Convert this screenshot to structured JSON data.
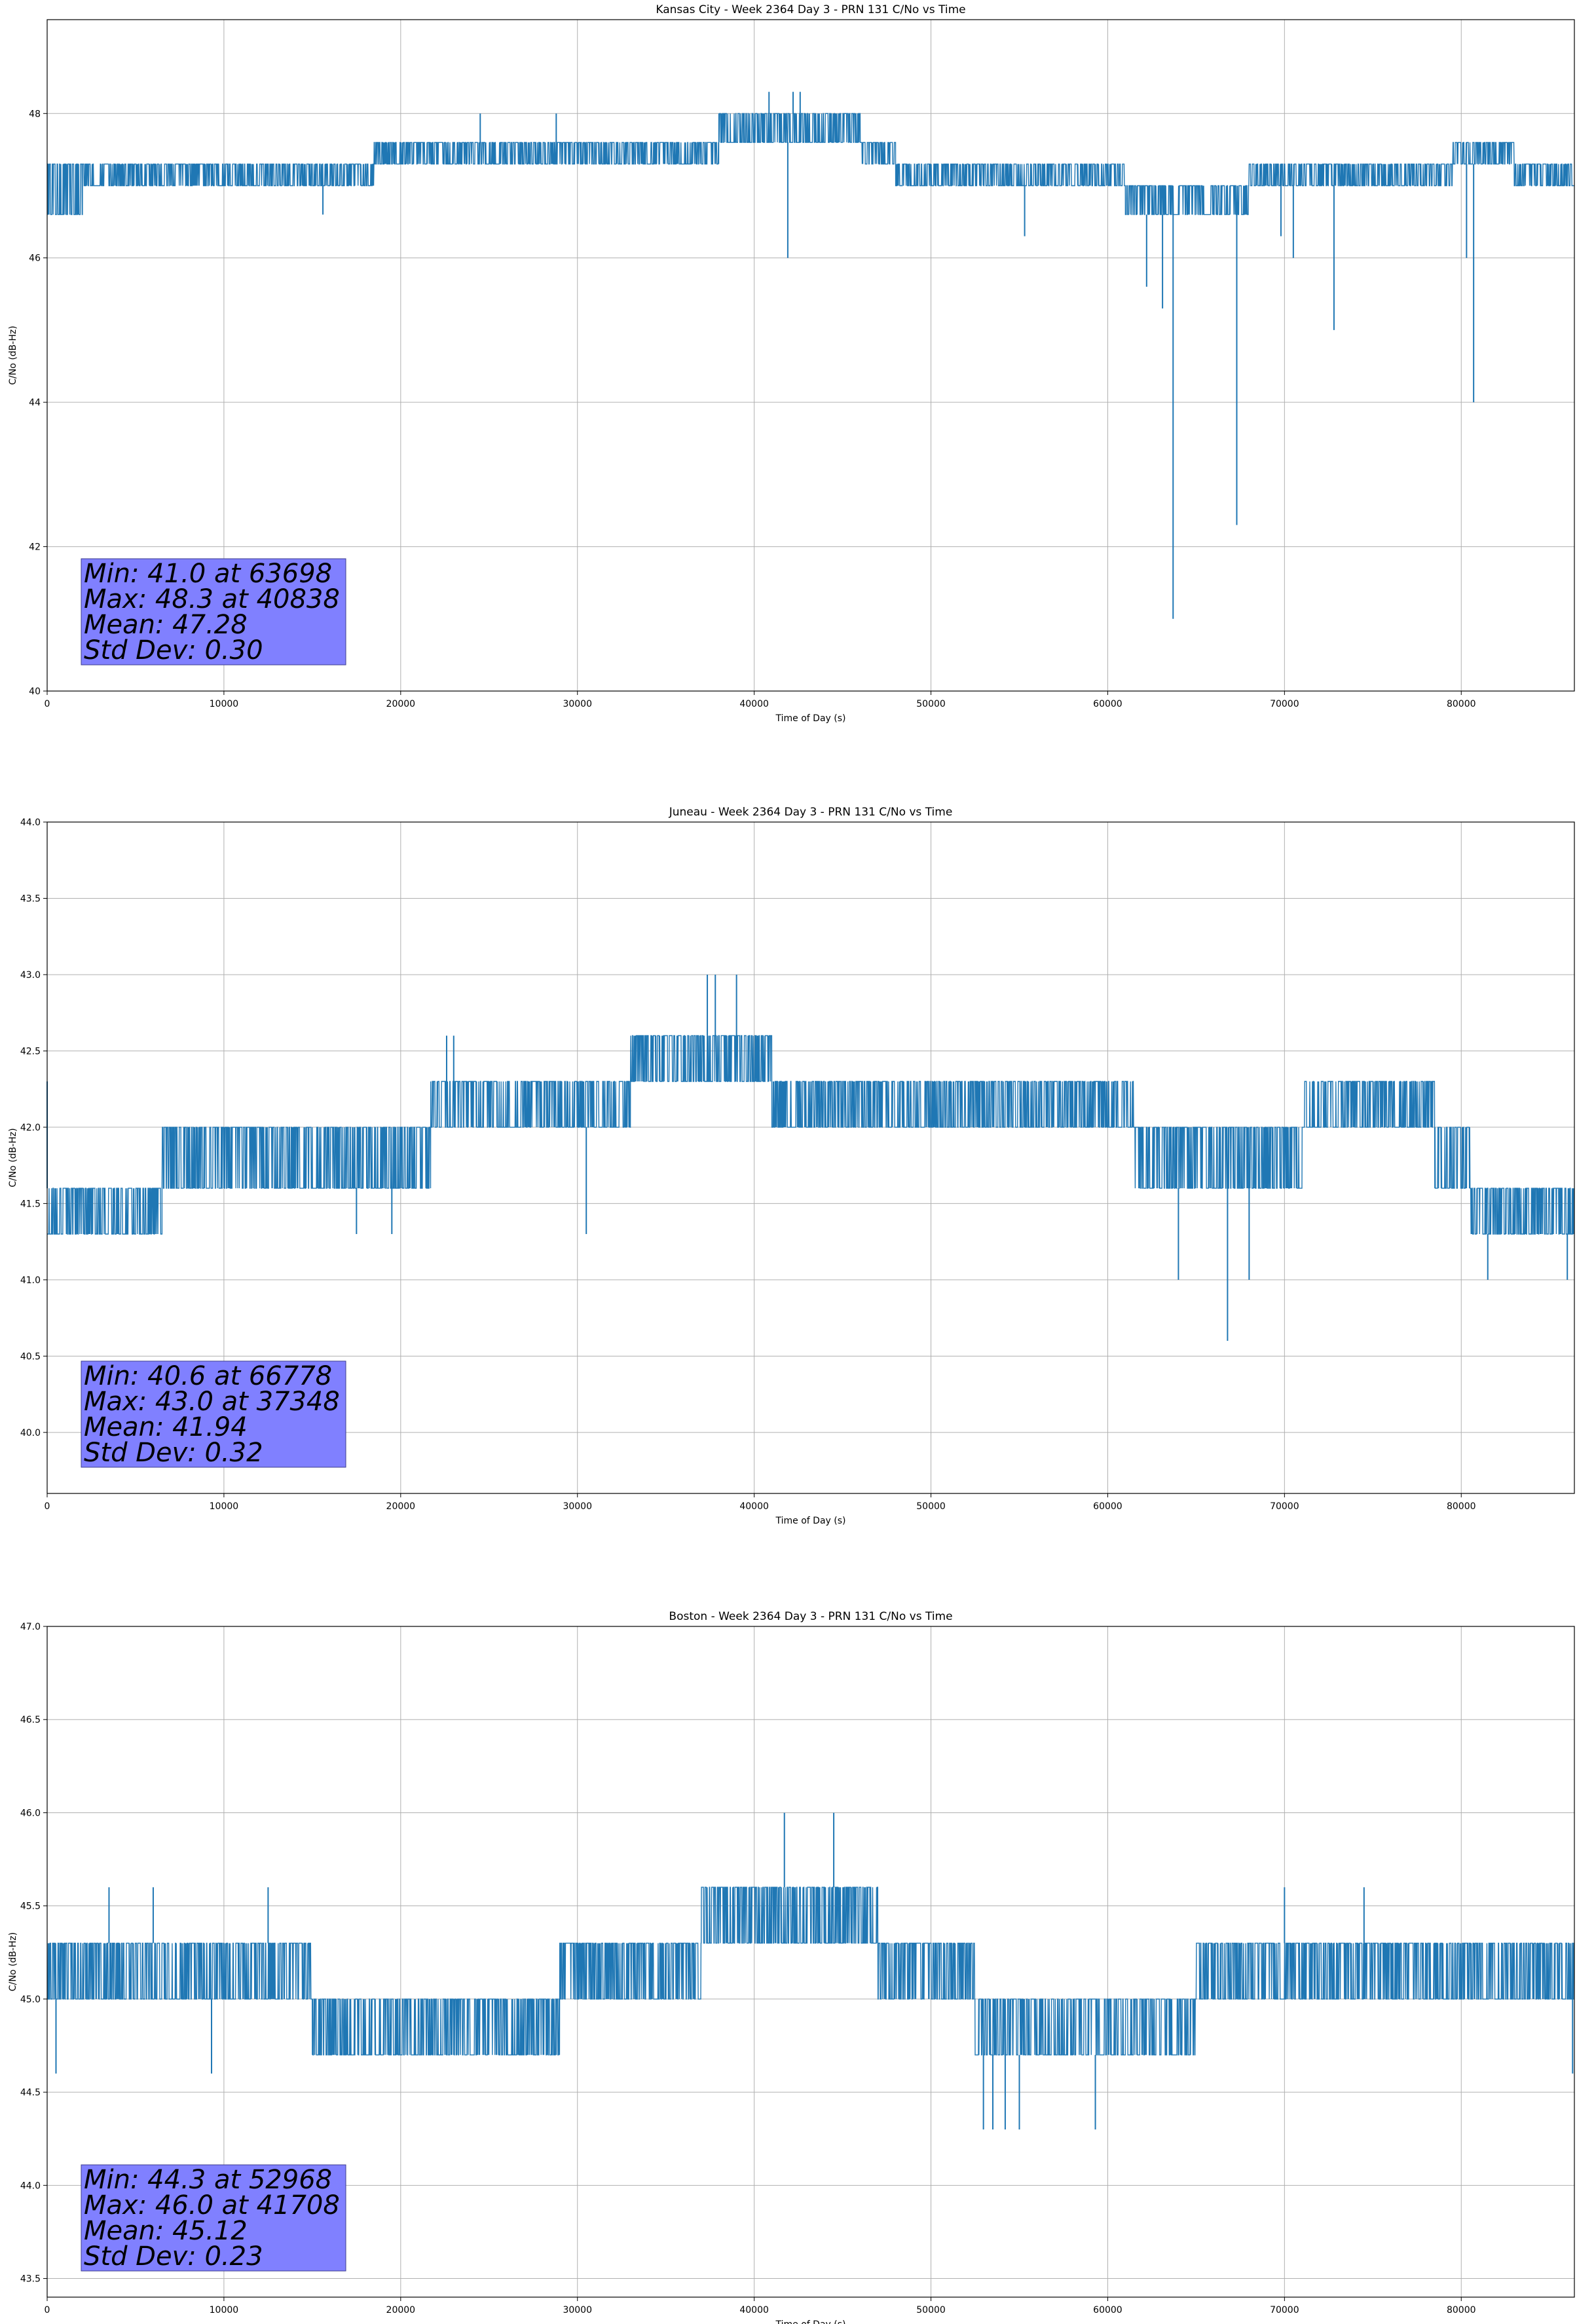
{
  "chart_data": [
    {
      "type": "line",
      "title": "Kansas City - Week 2364 Day 3 - PRN 131 C/No vs Time",
      "xlabel": "Time of Day (s)",
      "ylabel": "C/No (dB-Hz)",
      "xlim": [
        0,
        86400
      ],
      "ylim": [
        40,
        49.3
      ],
      "grid": true,
      "xticks": [
        0,
        10000,
        20000,
        30000,
        40000,
        50000,
        60000,
        70000,
        80000
      ],
      "xtick_labels": [
        "0",
        "10000",
        "20000",
        "30000",
        "40000",
        "50000",
        "60000",
        "70000",
        "80000"
      ],
      "yticks": [
        40,
        42,
        44,
        46,
        48
      ],
      "ytick_labels": [
        "40",
        "42",
        "44",
        "46",
        "48"
      ],
      "color": "#1f77b4",
      "series": [
        {
          "name": "C/No",
          "segments": [
            [
              0,
              2000,
              46.6,
              47.3
            ],
            [
              2000,
              18500,
              47.0,
              47.3
            ],
            [
              18500,
              38000,
              47.3,
              47.6
            ],
            [
              38000,
              46000,
              47.6,
              48.0
            ],
            [
              46000,
              48000,
              47.3,
              47.6
            ],
            [
              48000,
              61000,
              47.0,
              47.3
            ],
            [
              61000,
              68000,
              46.6,
              47.0
            ],
            [
              68000,
              79500,
              47.0,
              47.3
            ],
            [
              79500,
              83000,
              47.3,
              47.6
            ],
            [
              83000,
              86400,
              47.0,
              47.3
            ]
          ],
          "spikes": [
            [
              24500,
              48.0
            ],
            [
              28800,
              48.0
            ],
            [
              40838,
              48.3
            ],
            [
              42200,
              48.3
            ],
            [
              42600,
              48.3
            ],
            [
              62200,
              45.6
            ],
            [
              63100,
              45.3
            ],
            [
              63698,
              41.0
            ],
            [
              67300,
              42.3
            ],
            [
              69800,
              46.3
            ],
            [
              70500,
              46.0
            ],
            [
              72800,
              45.0
            ],
            [
              80300,
              46.0
            ],
            [
              80700,
              44.0
            ],
            [
              41900,
              46.0
            ],
            [
              15600,
              46.6
            ],
            [
              55300,
              46.3
            ]
          ]
        }
      ],
      "stats": {
        "min": "Min: 41.0 at 63698",
        "max": "Max: 48.3 at 40838",
        "mean": "Mean: 47.28",
        "std": "Std Dev: 0.30"
      }
    },
    {
      "type": "line",
      "title": "Juneau - Week 2364 Day 3 - PRN 131 C/No vs Time",
      "xlabel": "Time of Day (s)",
      "ylabel": "C/No (dB-Hz)",
      "xlim": [
        0,
        86400
      ],
      "ylim": [
        39.6,
        44.0
      ],
      "grid": true,
      "xticks": [
        0,
        10000,
        20000,
        30000,
        40000,
        50000,
        60000,
        70000,
        80000
      ],
      "xtick_labels": [
        "0",
        "10000",
        "20000",
        "30000",
        "40000",
        "50000",
        "60000",
        "70000",
        "80000"
      ],
      "yticks": [
        40.0,
        40.5,
        41.0,
        41.5,
        42.0,
        42.5,
        43.0,
        43.5,
        44.0
      ],
      "ytick_labels": [
        "40.0",
        "40.5",
        "41.0",
        "41.5",
        "42.0",
        "42.5",
        "43.0",
        "43.5",
        "44.0"
      ],
      "color": "#1f77b4",
      "series": [
        {
          "name": "C/No",
          "segments": [
            [
              0,
              6500,
              41.3,
              41.6
            ],
            [
              6500,
              21700,
              41.6,
              42.0
            ],
            [
              21700,
              30800,
              42.0,
              42.3
            ],
            [
              30800,
              33000,
              42.0,
              42.3
            ],
            [
              33000,
              41000,
              42.3,
              42.6
            ],
            [
              41000,
              61500,
              42.0,
              42.3
            ],
            [
              61500,
              71000,
              41.6,
              42.0
            ],
            [
              71000,
              78500,
              42.0,
              42.3
            ],
            [
              78500,
              80500,
              41.6,
              42.0
            ],
            [
              80500,
              86400,
              41.3,
              41.6
            ]
          ],
          "spikes": [
            [
              37348,
              43.0
            ],
            [
              37800,
              43.0
            ],
            [
              39000,
              43.0
            ],
            [
              22600,
              42.6
            ],
            [
              23000,
              42.6
            ],
            [
              66778,
              40.6
            ],
            [
              64000,
              41.0
            ],
            [
              68000,
              41.0
            ],
            [
              81500,
              41.0
            ],
            [
              86000,
              41.0
            ],
            [
              17500,
              41.3
            ],
            [
              19500,
              41.3
            ],
            [
              30500,
              41.3
            ],
            [
              0,
              42.3
            ]
          ]
        }
      ],
      "stats": {
        "min": "Min: 40.6 at 66778",
        "max": "Max: 43.0 at 37348",
        "mean": "Mean: 41.94",
        "std": "Std Dev: 0.32"
      }
    },
    {
      "type": "line",
      "title": "Boston - Week 2364 Day 3 - PRN 131 C/No vs Time",
      "xlabel": "Time of Day (s)",
      "ylabel": "C/No (dB-Hz)",
      "xlim": [
        0,
        86400
      ],
      "ylim": [
        43.4,
        47.0
      ],
      "grid": true,
      "xticks": [
        0,
        10000,
        20000,
        30000,
        40000,
        50000,
        60000,
        70000,
        80000
      ],
      "xtick_labels": [
        "0",
        "10000",
        "20000",
        "30000",
        "40000",
        "50000",
        "60000",
        "70000",
        "80000"
      ],
      "yticks": [
        43.5,
        44.0,
        44.5,
        45.0,
        45.5,
        46.0,
        46.5,
        47.0
      ],
      "ytick_labels": [
        "43.5",
        "44.0",
        "44.5",
        "45.0",
        "45.5",
        "46.0",
        "46.5",
        "47.0"
      ],
      "color": "#1f77b4",
      "series": [
        {
          "name": "C/No",
          "segments": [
            [
              0,
              15000,
              45.0,
              45.3
            ],
            [
              15000,
              29000,
              44.7,
              45.0
            ],
            [
              29000,
              37000,
              45.0,
              45.3
            ],
            [
              37000,
              47000,
              45.3,
              45.6
            ],
            [
              47000,
              52500,
              45.0,
              45.3
            ],
            [
              52500,
              65000,
              44.7,
              45.0
            ],
            [
              65000,
              86400,
              45.0,
              45.3
            ]
          ],
          "spikes": [
            [
              41708,
              46.0
            ],
            [
              44500,
              46.0
            ],
            [
              52968,
              44.3
            ],
            [
              53500,
              44.3
            ],
            [
              54200,
              44.3
            ],
            [
              55000,
              44.3
            ],
            [
              59300,
              44.3
            ],
            [
              500,
              44.6
            ],
            [
              9300,
              44.6
            ],
            [
              86300,
              44.6
            ],
            [
              3500,
              45.6
            ],
            [
              6000,
              45.6
            ],
            [
              12500,
              45.6
            ],
            [
              70000,
              45.6
            ],
            [
              74500,
              45.6
            ]
          ]
        }
      ],
      "stats": {
        "min": "Min: 44.3 at 52968",
        "max": "Max: 46.0 at 41708",
        "mean": "Mean: 45.12",
        "std": "Std Dev: 0.23"
      }
    }
  ]
}
